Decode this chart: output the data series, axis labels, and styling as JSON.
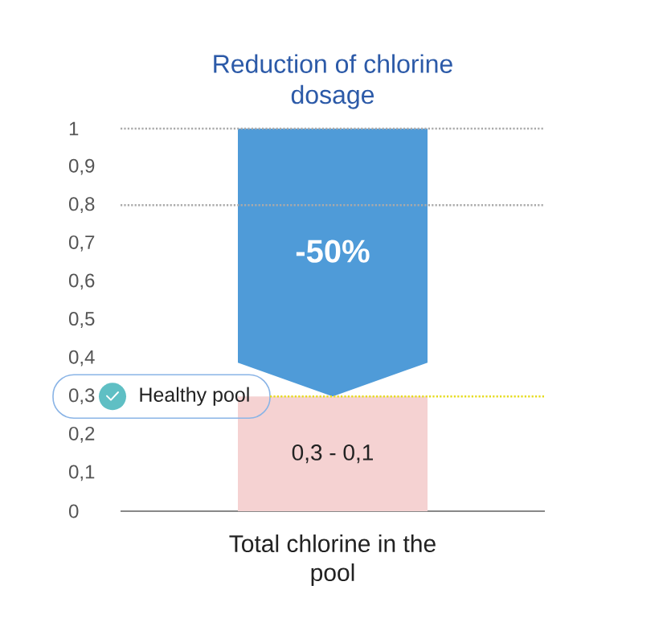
{
  "chart_data": {
    "type": "bar",
    "title": "Reduction of chlorine dosage",
    "categories": [
      "Total chlorine in the pool"
    ],
    "stacked": true,
    "series": [
      {
        "color": "#f5d2d2",
        "values": [
          0.3
        ],
        "value_labels": [
          "0,3 - 0,1"
        ]
      },
      {
        "color": "#4f9bd8",
        "values": [
          0.7
        ]
      }
    ],
    "ylim": [
      0,
      1
    ],
    "yticks": [
      0,
      {
        "value": 0.1,
        "label": "0,1"
      },
      {
        "value": 0.2,
        "label": "0,2"
      },
      {
        "value": 0.3,
        "label": "0,3"
      },
      {
        "value": 0.4,
        "label": "0,4"
      },
      {
        "value": 0.5,
        "label": "0,5"
      },
      {
        "value": 0.6,
        "label": "0,6"
      },
      {
        "value": 0.7,
        "label": "0,7"
      },
      {
        "value": 0.8,
        "label": "0,8"
      },
      {
        "value": 0.9,
        "label": "0,9"
      },
      1
    ],
    "ref_lines": [
      {
        "axis": "y",
        "value": 1,
        "color": "#aaaaaa",
        "line_style": "dotted"
      },
      {
        "axis": "y",
        "value": 0.8,
        "color": "#aaaaaa",
        "line_style": "dotted"
      },
      {
        "axis": "y",
        "value": 0.3,
        "label": "Healthy pool",
        "color": "#e6dc1e",
        "line_style": "dotted"
      }
    ],
    "annotations": [
      "-50%"
    ]
  }
}
